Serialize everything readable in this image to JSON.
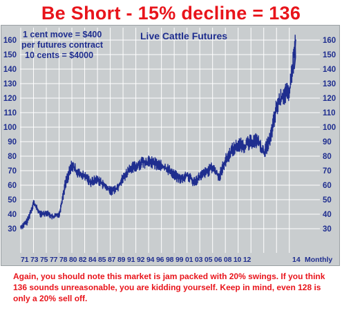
{
  "title": "Be Short - 15% decline = 136",
  "annotation_left": {
    "line1": "1 cent move = $400",
    "line2": "per futures contract",
    "line3": "10 cents = $4000"
  },
  "annotation_right": "Live Cattle Futures",
  "x_axis_ticks_text": "71 73 75 77 78 80 82 84 85 87 89 91 92 94 96 98 99 01 03 05 06 08 10 12",
  "x_axis_last_tick": "14",
  "x_axis_unit": "Monthly",
  "footer": "Again, you should note this market is jam packed with 20% swings. If you think 136 sounds unreasonable, you are kidding yourself. Keep in mind, even 128 is only a 20% sell off.",
  "colors": {
    "title": "#e8141b",
    "series": "#1f2e8f",
    "panel": "#c9cdcf",
    "footer": "#e8141b"
  },
  "chart_data": {
    "type": "line",
    "title": "Be Short - 15% decline = 136",
    "xlabel": "Monthly",
    "ylabel": "",
    "ylim": [
      20,
      165
    ],
    "yticks": [
      30,
      40,
      50,
      60,
      70,
      80,
      90,
      100,
      110,
      120,
      130,
      140,
      150,
      160
    ],
    "grid": true,
    "legend": "none",
    "series": [
      {
        "name": "Live Cattle Futures",
        "x": [
          1971,
          1972,
          1973,
          1974,
          1975,
          1976,
          1977,
          1978,
          1979,
          1980,
          1981,
          1982,
          1983,
          1984,
          1985,
          1986,
          1987,
          1988,
          1989,
          1990,
          1991,
          1992,
          1993,
          1994,
          1995,
          1996,
          1997,
          1998,
          1999,
          2000,
          2001,
          2002,
          2003,
          2004,
          2005,
          2006,
          2007,
          2008,
          2009,
          2010,
          2011,
          2012,
          2013,
          2014
        ],
        "values": [
          31,
          35,
          48,
          40,
          41,
          38,
          40,
          62,
          74,
          68,
          66,
          62,
          64,
          60,
          56,
          58,
          65,
          71,
          73,
          76,
          76,
          75,
          73,
          71,
          67,
          64,
          67,
          62,
          66,
          69,
          72,
          66,
          77,
          84,
          88,
          87,
          90,
          91,
          82,
          92,
          114,
          122,
          124,
          160
        ]
      }
    ]
  }
}
